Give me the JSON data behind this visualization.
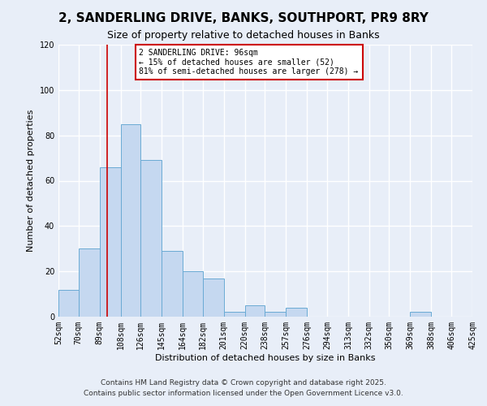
{
  "title": "2, SANDERLING DRIVE, BANKS, SOUTHPORT, PR9 8RY",
  "subtitle": "Size of property relative to detached houses in Banks",
  "xlabel": "Distribution of detached houses by size in Banks",
  "ylabel": "Number of detached properties",
  "bar_values": [
    12,
    30,
    66,
    85,
    69,
    29,
    20,
    17,
    2,
    5,
    2,
    4,
    0,
    0,
    0,
    0,
    0,
    2,
    0,
    0
  ],
  "bin_edges": [
    52,
    70,
    89,
    108,
    126,
    145,
    164,
    182,
    201,
    220,
    238,
    257,
    276,
    294,
    313,
    332,
    350,
    369,
    388,
    406,
    425
  ],
  "tick_labels": [
    "52sqm",
    "70sqm",
    "89sqm",
    "108sqm",
    "126sqm",
    "145sqm",
    "164sqm",
    "182sqm",
    "201sqm",
    "220sqm",
    "238sqm",
    "257sqm",
    "276sqm",
    "294sqm",
    "313sqm",
    "332sqm",
    "350sqm",
    "369sqm",
    "388sqm",
    "406sqm",
    "425sqm"
  ],
  "bar_color": "#c5d8f0",
  "bar_edge_color": "#6aaad4",
  "vline_x": 96,
  "vline_color": "#cc0000",
  "ylim": [
    0,
    120
  ],
  "yticks": [
    0,
    20,
    40,
    60,
    80,
    100,
    120
  ],
  "annotation_title": "2 SANDERLING DRIVE: 96sqm",
  "annotation_line1": "← 15% of detached houses are smaller (52)",
  "annotation_line2": "81% of semi-detached houses are larger (278) →",
  "annotation_box_color": "#ffffff",
  "annotation_box_edge": "#cc0000",
  "footer1": "Contains HM Land Registry data © Crown copyright and database right 2025.",
  "footer2": "Contains public sector information licensed under the Open Government Licence v3.0.",
  "background_color": "#e8eef8",
  "plot_bg_color": "#e8eef8",
  "grid_color": "#ffffff",
  "title_fontsize": 11,
  "subtitle_fontsize": 9,
  "axis_label_fontsize": 8,
  "tick_fontsize": 7,
  "annotation_fontsize": 7,
  "footer_fontsize": 6.5
}
